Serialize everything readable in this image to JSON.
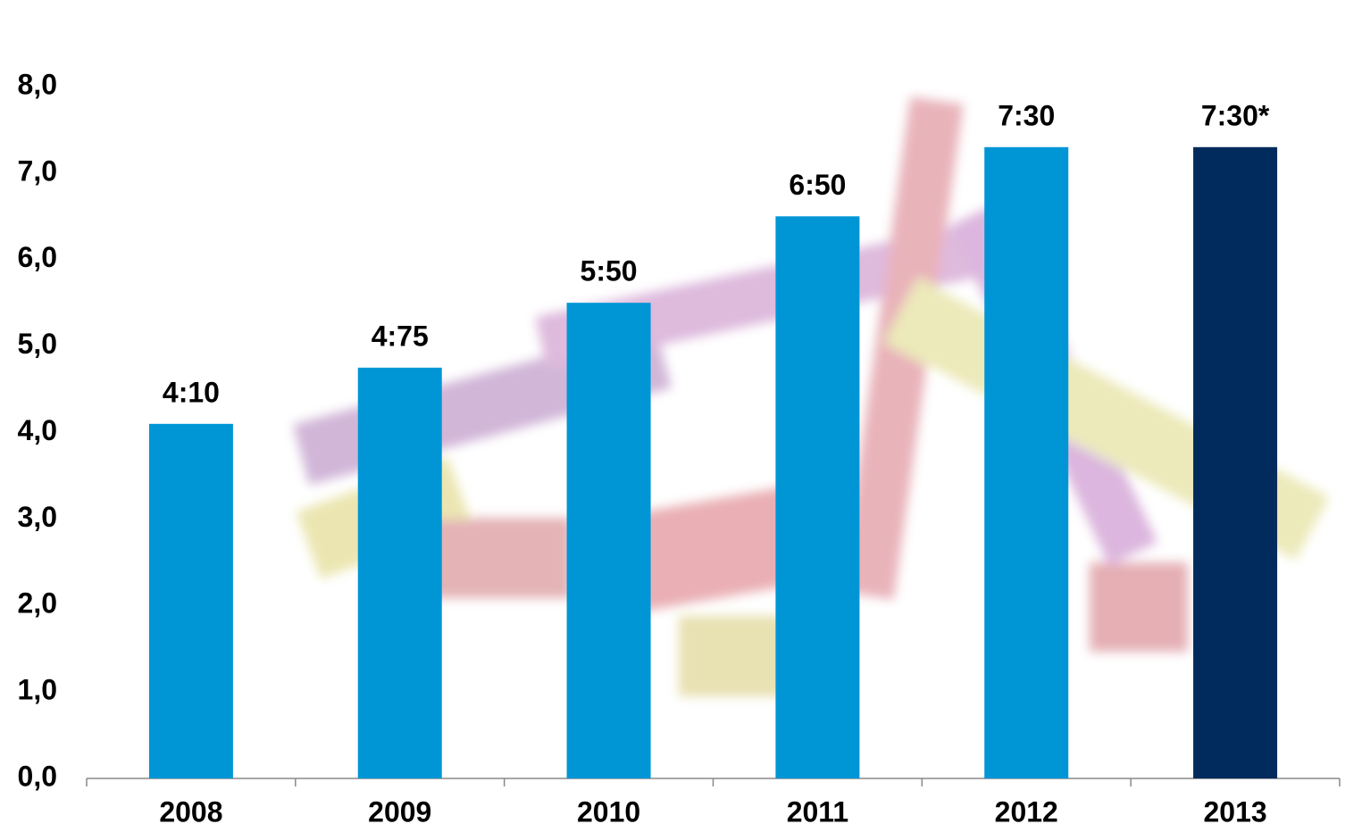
{
  "chart_data": {
    "type": "bar",
    "categories": [
      "2008",
      "2009",
      "2010",
      "2011",
      "2012",
      "2013"
    ],
    "values": [
      4.1,
      4.75,
      5.5,
      6.5,
      7.3,
      7.3
    ],
    "value_labels": [
      "4:10",
      "4:75",
      "5:50",
      "6:50",
      "7:30",
      "7:30*"
    ],
    "colors": [
      "#0096d6",
      "#0096d6",
      "#0096d6",
      "#0096d6",
      "#0096d6",
      "#002b5c"
    ],
    "ylim": [
      0,
      8
    ],
    "yticks": [
      {
        "value": 0,
        "label": "0,0"
      },
      {
        "value": 1,
        "label": "1,0"
      },
      {
        "value": 2,
        "label": "2,0"
      },
      {
        "value": 3,
        "label": "3,0"
      },
      {
        "value": 4,
        "label": "4,0"
      },
      {
        "value": 5,
        "label": "5,0"
      },
      {
        "value": 6,
        "label": "6,0"
      },
      {
        "value": 7,
        "label": "7,0"
      },
      {
        "value": 8,
        "label": "8,0"
      }
    ],
    "grid": false
  }
}
